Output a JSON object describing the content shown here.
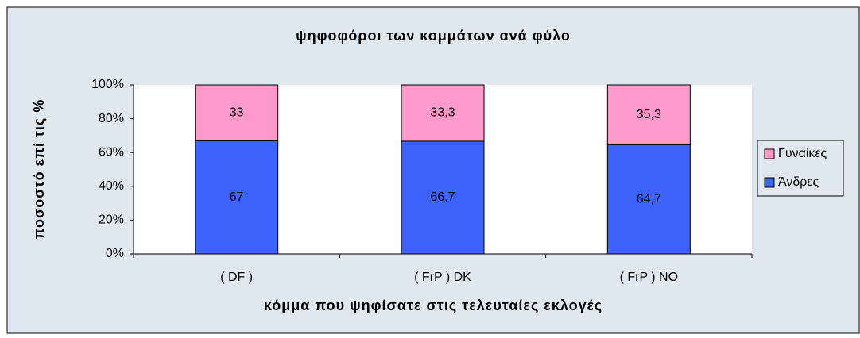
{
  "chart_data": {
    "type": "stacked_bar",
    "title": "ψηφοφόροι των κομμάτων ανά φύλο",
    "x_label": "κόμμα που ψηφίσατε στις τελευταίες εκλογές",
    "y_label": "ποσοστό επί τις %",
    "categories": [
      "( DF )",
      "( FrP ) DK",
      "( FrP ) NO"
    ],
    "series": [
      {
        "name": "Άνδρες",
        "color": "#3b63fb",
        "values": [
          67,
          66.7,
          64.7
        ],
        "value_labels": [
          "67",
          "66,7",
          "64,7"
        ]
      },
      {
        "name": "Γυναίκες",
        "color": "#fe99cb",
        "values": [
          33,
          33.3,
          35.3
        ],
        "value_labels": [
          "33",
          "33,3",
          "35,3"
        ]
      }
    ],
    "ylim": [
      0,
      100
    ],
    "yticks": [
      {
        "value": 0,
        "label": "0%"
      },
      {
        "value": 20,
        "label": "20%"
      },
      {
        "value": 40,
        "label": "40%"
      },
      {
        "value": 60,
        "label": "60%"
      },
      {
        "value": 80,
        "label": "80%"
      },
      {
        "value": 100,
        "label": "100%"
      }
    ],
    "legend": "right"
  }
}
